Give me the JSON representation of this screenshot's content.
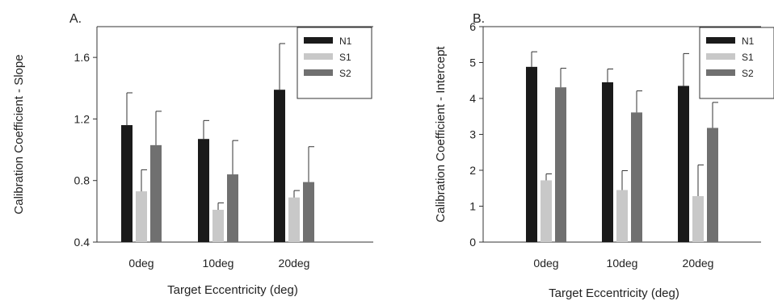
{
  "chart_data": [
    {
      "type": "bar",
      "panel": "A.",
      "title": "",
      "xlabel": "Target Eccentricity (deg)",
      "ylabel": "Calibration Coefficient - Slope",
      "ylim": [
        0.4,
        1.8
      ],
      "yticks": [
        "0.4",
        "0.8",
        "1.2",
        "1.6"
      ],
      "categories": [
        "0deg",
        "10deg",
        "20deg"
      ],
      "legend_position": "top-right",
      "series": [
        {
          "name": "N1",
          "color": "#1a1a1a",
          "values": [
            1.16,
            1.07,
            1.39
          ],
          "errors": [
            0.21,
            0.12,
            0.3
          ]
        },
        {
          "name": "S1",
          "color": "#c8c8c8",
          "values": [
            0.73,
            0.61,
            0.69
          ],
          "errors": [
            0.14,
            0.045,
            0.045
          ]
        },
        {
          "name": "S2",
          "color": "#707070",
          "values": [
            1.03,
            0.84,
            0.79
          ],
          "errors": [
            0.22,
            0.22,
            0.23
          ]
        }
      ]
    },
    {
      "type": "bar",
      "panel": "B.",
      "title": "",
      "xlabel": "Target Eccentricity (deg)",
      "ylabel": "Calibration Coefficient - Intercept",
      "ylim": [
        0,
        6
      ],
      "yticks": [
        "0",
        "1",
        "2",
        "3",
        "4",
        "5",
        "6"
      ],
      "categories": [
        "0deg",
        "10deg",
        "20deg"
      ],
      "legend_position": "top-right",
      "series": [
        {
          "name": "N1",
          "color": "#1a1a1a",
          "values": [
            4.88,
            4.45,
            4.35
          ],
          "errors": [
            0.42,
            0.37,
            0.9
          ]
        },
        {
          "name": "S1",
          "color": "#c8c8c8",
          "values": [
            1.72,
            1.45,
            1.28
          ],
          "errors": [
            0.18,
            0.54,
            0.87
          ]
        },
        {
          "name": "S2",
          "color": "#707070",
          "values": [
            4.31,
            3.61,
            3.18
          ],
          "errors": [
            0.53,
            0.6,
            0.71
          ]
        }
      ]
    }
  ]
}
